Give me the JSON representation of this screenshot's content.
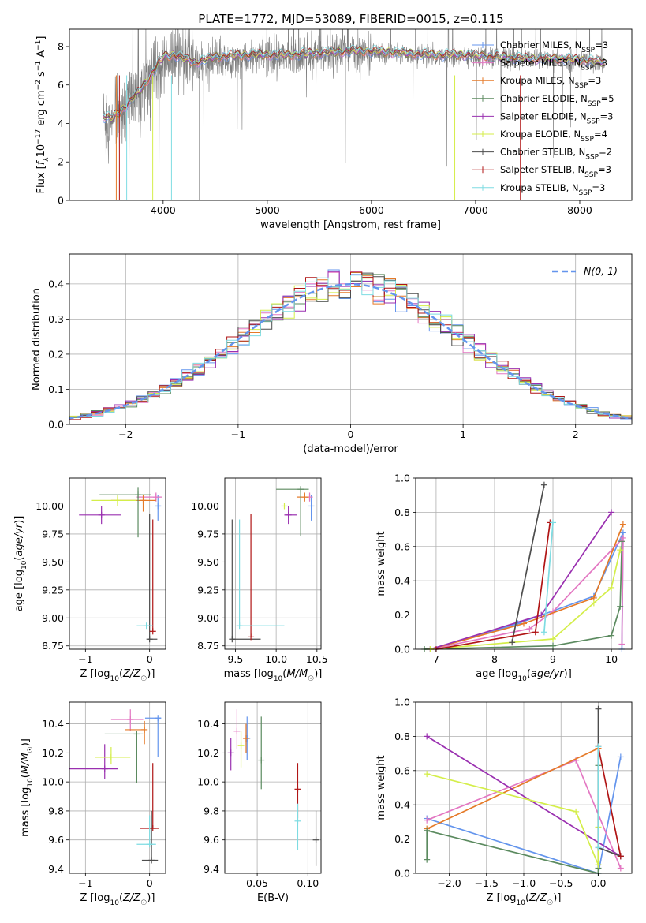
{
  "figure": {
    "title": "PLATE=1772, MJD=53089, FIBERID=0015, z=0.115",
    "series": [
      {
        "name": "Chabrier MILES, N_SSP=3",
        "color": "#6495ED"
      },
      {
        "name": "Salpeter MILES, N_SSP=3",
        "color": "#E377C2"
      },
      {
        "name": "Kroupa MILES, N_SSP=3",
        "color": "#E57A28"
      },
      {
        "name": "Chabrier ELODIE, N_SSP=5",
        "color": "#5B8A5F"
      },
      {
        "name": "Salpeter ELODIE, N_SSP=3",
        "color": "#9A30B0"
      },
      {
        "name": "Kroupa ELODIE, N_SSP=4",
        "color": "#D4EE4A"
      },
      {
        "name": "Chabrier STELIB, N_SSP=2",
        "color": "#4D4D4D"
      },
      {
        "name": "Salpeter STELIB, N_SSP=3",
        "color": "#B01515"
      },
      {
        "name": "Kroupa STELIB, N_SSP=3",
        "color": "#7EDCE2"
      }
    ]
  },
  "chart_data": [
    {
      "id": "spectrum",
      "type": "line",
      "xlabel": "wavelength [Angstrom, rest frame]",
      "ylabel": "Flux [f_λ 10^-17 erg cm^-2 s^-1 A^-1]",
      "xlim": [
        3100,
        8500
      ],
      "ylim": [
        0,
        8.9
      ],
      "xticks": [
        4000,
        5000,
        6000,
        7000,
        8000
      ],
      "yticks": [
        0,
        2,
        4,
        6,
        8
      ],
      "grid": false,
      "legend": "right",
      "legend_labels": [
        {
          "pre": "Chabrier MILES, N",
          "sub": "SSP",
          "post": "=3"
        },
        {
          "pre": "Salpeter MILES, N",
          "sub": "SSP",
          "post": "=3"
        },
        {
          "pre": "Kroupa MILES, N",
          "sub": "SSP",
          "post": "=3"
        },
        {
          "pre": "Chabrier ELODIE, N",
          "sub": "SSP",
          "post": "=5"
        },
        {
          "pre": "Salpeter ELODIE, N",
          "sub": "SSP",
          "post": "=3"
        },
        {
          "pre": "Kroupa ELODIE, N",
          "sub": "SSP",
          "post": "=4"
        },
        {
          "pre": "Chabrier STELIB, N",
          "sub": "SSP",
          "post": "=2"
        },
        {
          "pre": "Salpeter STELIB, N",
          "sub": "SSP",
          "post": "=3"
        },
        {
          "pre": "Kroupa STELIB, N",
          "sub": "SSP",
          "post": "=3"
        }
      ],
      "data_flux": {
        "x": [
          3420,
          3500,
          3600,
          3700,
          3800,
          3900,
          4000,
          4100,
          4300,
          4500,
          4800,
          5000,
          5200,
          5500,
          5800,
          6000,
          6300,
          6600,
          6900,
          7200,
          7500,
          7800,
          8100,
          8240
        ],
        "y": [
          4.3,
          4.2,
          4.6,
          5.2,
          5.8,
          6.5,
          7.2,
          7.4,
          7.0,
          7.3,
          7.4,
          7.5,
          7.5,
          7.6,
          7.7,
          7.7,
          7.6,
          7.5,
          7.5,
          7.4,
          7.3,
          7.3,
          7.2,
          7.1
        ]
      },
      "model_x": [
        3420,
        3500,
        3600,
        3700,
        3800,
        3900,
        4000,
        4100,
        4300,
        4500,
        4800,
        5000,
        5200,
        5500,
        5800,
        6000,
        6300,
        6600,
        6900,
        7200,
        7500,
        7800,
        8100,
        8240
      ],
      "model_y": [
        4.4,
        4.3,
        4.7,
        5.3,
        5.9,
        6.7,
        7.5,
        7.6,
        7.2,
        7.5,
        7.6,
        7.6,
        7.6,
        7.7,
        7.8,
        7.8,
        7.7,
        7.6,
        7.6,
        7.5,
        7.4,
        7.4,
        7.3,
        7.2
      ]
    },
    {
      "id": "residuals",
      "type": "step",
      "xlabel": "(data-model)/error",
      "ylabel": "Normed distribution",
      "xlim": [
        -2.5,
        2.5
      ],
      "ylim": [
        0,
        0.485
      ],
      "xticks": [
        -2,
        -1,
        0,
        1,
        2
      ],
      "yticks": [
        0.0,
        0.1,
        0.2,
        0.3,
        0.4
      ],
      "grid": true,
      "legend": "top-right",
      "reference_label": "N(0, 1)",
      "bin_width": 0.1
    },
    {
      "id": "age_vs_Z",
      "type": "errorbar",
      "xlabel": "Z [log10(Z/Z☉)]",
      "ylabel": "age [log10(age/yr)]",
      "xlim": [
        -1.25,
        0.25
      ],
      "ylim": [
        8.72,
        10.25
      ],
      "xticks": [
        -1,
        0
      ],
      "yticks": [
        8.75,
        9.0,
        9.25,
        9.5,
        9.75,
        10.0
      ],
      "grid": true,
      "points": [
        {
          "s": 0,
          "x": 0.13,
          "xe": [
            0.05,
            0.05
          ],
          "y": 10.0,
          "ye": [
            0.13,
            0.1
          ]
        },
        {
          "s": 1,
          "x": 0.1,
          "xe": [
            0.3,
            0.1
          ],
          "y": 10.08,
          "ye": [
            0.04,
            0.04
          ]
        },
        {
          "s": 2,
          "x": -0.1,
          "xe": [
            0.5,
            0.2
          ],
          "y": 10.05,
          "ye": [
            0.1,
            0.05
          ]
        },
        {
          "s": 3,
          "x": -0.18,
          "xe": [
            0.6,
            0.2
          ],
          "y": 10.1,
          "ye": [
            0.38,
            0.07
          ]
        },
        {
          "s": 4,
          "x": -0.75,
          "xe": [
            0.35,
            0.3
          ],
          "y": 9.92,
          "ye": [
            0.08,
            0.08
          ]
        },
        {
          "s": 5,
          "x": -0.5,
          "xe": [
            0.4,
            0.3
          ],
          "y": 10.05,
          "ye": [
            0.05,
            0.05
          ]
        },
        {
          "s": 6,
          "x": 0.0,
          "xe": [
            0.02,
            0.12
          ],
          "y": 8.81,
          "ye": [
            0.0,
            1.12
          ]
        },
        {
          "s": 7,
          "x": 0.05,
          "xe": [
            0.0,
            0.0
          ],
          "y": 8.88,
          "ye": [
            0.0,
            1.0
          ]
        },
        {
          "s": 8,
          "x": -0.05,
          "xe": [
            0.15,
            0.1
          ],
          "y": 8.93,
          "ye": [
            0.0,
            0.0
          ]
        }
      ]
    },
    {
      "id": "age_vs_mass",
      "type": "errorbar",
      "xlabel": "mass [log10(M/M☉)]",
      "ylabel": "",
      "xlim": [
        9.37,
        10.55
      ],
      "ylim": [
        8.72,
        10.25
      ],
      "xticks": [
        9.5,
        10.0,
        10.5
      ],
      "yticks": [
        8.75,
        9.0,
        9.25,
        9.5,
        9.75,
        10.0
      ],
      "grid": true,
      "points": [
        {
          "s": 0,
          "x": 10.43,
          "xe": [
            0.0,
            0.0
          ],
          "y": 10.0,
          "ye": [
            0.13,
            0.1
          ]
        },
        {
          "s": 1,
          "x": 10.41,
          "xe": [
            0.0,
            0.0
          ],
          "y": 10.08,
          "ye": [
            0.04,
            0.04
          ]
        },
        {
          "s": 2,
          "x": 10.35,
          "xe": [
            0.1,
            0.05
          ],
          "y": 10.08,
          "ye": [
            0.04,
            0.04
          ]
        },
        {
          "s": 3,
          "x": 10.3,
          "xe": [
            0.3,
            0.1
          ],
          "y": 10.15,
          "ye": [
            0.42,
            0.02
          ]
        },
        {
          "s": 4,
          "x": 10.15,
          "xe": [
            0.05,
            0.1
          ],
          "y": 9.92,
          "ye": [
            0.08,
            0.08
          ]
        },
        {
          "s": 5,
          "x": 10.1,
          "xe": [
            0.0,
            0.0
          ],
          "y": 10.0,
          "ye": [
            0.0,
            0.0
          ]
        },
        {
          "s": 6,
          "x": 9.46,
          "xe": [
            0.0,
            0.35
          ],
          "y": 8.81,
          "ye": [
            0.0,
            1.07
          ]
        },
        {
          "s": 7,
          "x": 9.69,
          "xe": [
            0.0,
            0.0
          ],
          "y": 8.83,
          "ye": [
            0.0,
            1.1
          ]
        },
        {
          "s": 8,
          "x": 9.55,
          "xe": [
            0.0,
            0.55
          ],
          "y": 8.93,
          "ye": [
            0.0,
            0.95
          ]
        }
      ]
    },
    {
      "id": "mass_weight_vs_age",
      "type": "line",
      "xlabel": "age [log10(age/yr)]",
      "ylabel": "mass weight",
      "xlim": [
        6.65,
        10.35
      ],
      "ylim": [
        0,
        1.0
      ],
      "xticks": [
        7,
        8,
        9,
        10
      ],
      "yticks": [
        0.0,
        0.2,
        0.4,
        0.6,
        0.8,
        1.0
      ],
      "grid": true,
      "lines": [
        {
          "s": 0,
          "x": [
            6.9,
            8.4,
            9.7,
            10.2,
            10.18
          ],
          "y": [
            0.0,
            0.15,
            0.31,
            0.68,
            0.0
          ]
        },
        {
          "s": 1,
          "x": [
            6.9,
            8.6,
            9.0,
            10.2,
            10.18
          ],
          "y": [
            0.0,
            0.12,
            0.22,
            0.65,
            0.03
          ]
        },
        {
          "s": 2,
          "x": [
            6.9,
            8.5,
            9.7,
            10.2
          ],
          "y": [
            0.0,
            0.15,
            0.3,
            0.73
          ]
        },
        {
          "s": 3,
          "x": [
            6.8,
            9.0,
            10.0,
            10.15,
            10.18
          ],
          "y": [
            0.0,
            0.02,
            0.08,
            0.25,
            0.63
          ]
        },
        {
          "s": 4,
          "x": [
            6.9,
            8.8,
            10.0
          ],
          "y": [
            0.0,
            0.2,
            0.8
          ]
        },
        {
          "s": 5,
          "x": [
            6.9,
            9.0,
            9.7,
            10.0,
            10.15
          ],
          "y": [
            0.0,
            0.06,
            0.27,
            0.36,
            0.58
          ]
        },
        {
          "s": 6,
          "x": [
            8.3,
            8.85
          ],
          "y": [
            0.04,
            0.96
          ]
        },
        {
          "s": 7,
          "x": [
            7.0,
            8.7,
            8.95
          ],
          "y": [
            0.0,
            0.1,
            0.74
          ]
        },
        {
          "s": 8,
          "x": [
            8.85,
            9.0
          ],
          "y": [
            0.1,
            0.74
          ]
        }
      ]
    },
    {
      "id": "mass_vs_Z",
      "type": "errorbar",
      "xlabel": "Z [log10(Z/Z☉)]",
      "ylabel": "mass [log10(M/M☉)]",
      "xlim": [
        -1.25,
        0.25
      ],
      "ylim": [
        9.37,
        10.55
      ],
      "xticks": [
        -1,
        0
      ],
      "yticks": [
        9.4,
        9.6,
        9.8,
        10.0,
        10.2,
        10.4
      ],
      "grid": true,
      "points": [
        {
          "s": 0,
          "x": 0.13,
          "xe": [
            0.2,
            0.05
          ],
          "y": 10.44,
          "ye": [
            0.27,
            0.0
          ]
        },
        {
          "s": 1,
          "x": -0.3,
          "xe": [
            0.3,
            0.2
          ],
          "y": 10.43,
          "ye": [
            0.08,
            0.07
          ]
        },
        {
          "s": 2,
          "x": -0.08,
          "xe": [
            0.3,
            0.0
          ],
          "y": 10.36,
          "ye": [
            0.1,
            0.06
          ]
        },
        {
          "s": 3,
          "x": -0.2,
          "xe": [
            0.5,
            0.1
          ],
          "y": 10.33,
          "ye": [
            0.34,
            0.0
          ]
        },
        {
          "s": 4,
          "x": -0.7,
          "xe": [
            0.55,
            0.2
          ],
          "y": 10.09,
          "ye": [
            0.07,
            0.17
          ]
        },
        {
          "s": 5,
          "x": -0.6,
          "xe": [
            0.25,
            0.3
          ],
          "y": 10.17,
          "ye": [
            0.05,
            0.07
          ]
        },
        {
          "s": 6,
          "x": 0.03,
          "xe": [
            0.15,
            0.1
          ],
          "y": 9.46,
          "ye": [
            0.0,
            0.34
          ]
        },
        {
          "s": 7,
          "x": 0.05,
          "xe": [
            0.2,
            0.1
          ],
          "y": 9.68,
          "ye": [
            0.0,
            0.45
          ]
        },
        {
          "s": 8,
          "x": 0.0,
          "xe": [
            0.2,
            0.1
          ],
          "y": 9.57,
          "ye": [
            0.0,
            0.2
          ]
        }
      ]
    },
    {
      "id": "mass_vs_ebv",
      "type": "errorbar",
      "xlabel": "E(B-V)",
      "ylabel": "",
      "xlim": [
        0.018,
        0.113
      ],
      "ylim": [
        9.37,
        10.55
      ],
      "xticks": [
        0.05,
        0.1
      ],
      "yticks": [
        9.4,
        9.6,
        9.8,
        10.0,
        10.2,
        10.4
      ],
      "grid": true,
      "points": [
        {
          "s": 0,
          "x": 0.04,
          "xe": [
            0.0,
            0.0
          ],
          "y": 10.3,
          "ye": [
            0.15,
            0.15
          ]
        },
        {
          "s": 1,
          "x": 0.03,
          "xe": [
            0.0,
            0.0
          ],
          "y": 10.35,
          "ye": [
            0.12,
            0.15
          ]
        },
        {
          "s": 2,
          "x": 0.039,
          "xe": [
            0.0,
            0.0
          ],
          "y": 10.3,
          "ye": [
            0.1,
            0.1
          ]
        },
        {
          "s": 3,
          "x": 0.054,
          "xe": [
            0.0,
            0.0
          ],
          "y": 10.15,
          "ye": [
            0.2,
            0.3
          ]
        },
        {
          "s": 4,
          "x": 0.024,
          "xe": [
            0.0,
            0.0
          ],
          "y": 10.2,
          "ye": [
            0.12,
            0.1
          ]
        },
        {
          "s": 5,
          "x": 0.034,
          "xe": [
            0.0,
            0.0
          ],
          "y": 10.25,
          "ye": [
            0.15,
            0.1
          ]
        },
        {
          "s": 6,
          "x": 0.108,
          "xe": [
            0.0,
            0.0
          ],
          "y": 9.6,
          "ye": [
            0.18,
            0.2
          ]
        },
        {
          "s": 7,
          "x": 0.09,
          "xe": [
            0.0,
            0.0
          ],
          "y": 9.95,
          "ye": [
            0.2,
            0.18
          ]
        },
        {
          "s": 8,
          "x": 0.09,
          "xe": [
            0.0,
            0.0
          ],
          "y": 9.73,
          "ye": [
            0.2,
            0.12
          ]
        }
      ]
    },
    {
      "id": "mass_weight_vs_Z",
      "type": "line",
      "xlabel": "Z [log10(Z/Z☉)]",
      "ylabel": "mass weight",
      "xlim": [
        -2.45,
        0.45
      ],
      "ylim": [
        0,
        1.0
      ],
      "xticks": [
        -2.0,
        -1.5,
        -1.0,
        -0.5,
        0.0
      ],
      "yticks": [
        0.0,
        0.2,
        0.4,
        0.6,
        0.8,
        1.0
      ],
      "grid": true,
      "lines": [
        {
          "s": 0,
          "x": [
            -2.3,
            0.0,
            0.3
          ],
          "y": [
            0.32,
            0.0,
            0.68
          ]
        },
        {
          "s": 1,
          "x": [
            -2.3,
            -0.3,
            0.3
          ],
          "y": [
            0.31,
            0.66,
            0.03
          ]
        },
        {
          "s": 2,
          "x": [
            -2.3,
            0.0
          ],
          "y": [
            0.26,
            0.73
          ]
        },
        {
          "s": 3,
          "x": [
            -2.3,
            -2.3,
            0.0,
            0.0,
            0.0
          ],
          "y": [
            0.08,
            0.25,
            0.0,
            0.63,
            0.03
          ]
        },
        {
          "s": 4,
          "x": [
            -2.3,
            0.3
          ],
          "y": [
            0.8,
            0.1
          ]
        },
        {
          "s": 5,
          "x": [
            -2.3,
            -0.3,
            0.0,
            0.0
          ],
          "y": [
            0.58,
            0.36,
            0.05,
            0.27
          ]
        },
        {
          "s": 6,
          "x": [
            0.0,
            0.0,
            0.3
          ],
          "y": [
            0.96,
            0.15,
            0.1
          ]
        },
        {
          "s": 7,
          "x": [
            0.0,
            0.3
          ],
          "y": [
            0.74,
            0.1
          ]
        },
        {
          "s": 8,
          "x": [
            0.0,
            0.0
          ],
          "y": [
            0.74,
            0.15
          ]
        }
      ]
    }
  ]
}
